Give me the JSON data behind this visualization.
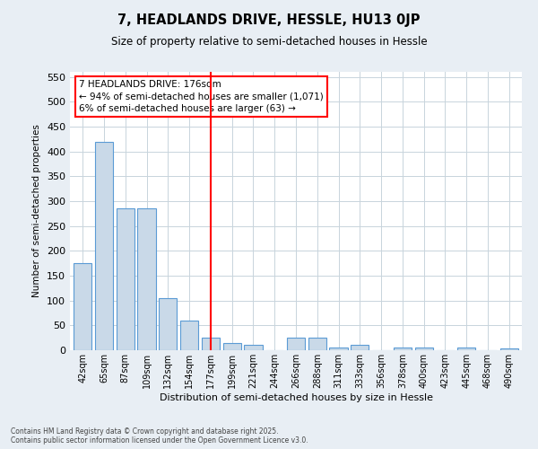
{
  "title": "7, HEADLANDS DRIVE, HESSLE, HU13 0JP",
  "subtitle": "Size of property relative to semi-detached houses in Hessle",
  "xlabel": "Distribution of semi-detached houses by size in Hessle",
  "ylabel": "Number of semi-detached properties",
  "categories": [
    "42sqm",
    "65sqm",
    "87sqm",
    "109sqm",
    "132sqm",
    "154sqm",
    "177sqm",
    "199sqm",
    "221sqm",
    "244sqm",
    "266sqm",
    "288sqm",
    "311sqm",
    "333sqm",
    "356sqm",
    "378sqm",
    "400sqm",
    "423sqm",
    "445sqm",
    "468sqm",
    "490sqm"
  ],
  "values": [
    175,
    420,
    285,
    285,
    105,
    60,
    25,
    15,
    10,
    0,
    25,
    25,
    5,
    10,
    0,
    5,
    5,
    0,
    5,
    0,
    3
  ],
  "bar_color": "#c9d9e8",
  "bar_edge_color": "#5b9bd5",
  "red_line_index": 6,
  "annotation_title": "7 HEADLANDS DRIVE: 176sqm",
  "annotation_line1": "← 94% of semi-detached houses are smaller (1,071)",
  "annotation_line2": "6% of semi-detached houses are larger (63) →",
  "ylim": [
    0,
    560
  ],
  "yticks": [
    0,
    50,
    100,
    150,
    200,
    250,
    300,
    350,
    400,
    450,
    500,
    550
  ],
  "footer_line1": "Contains HM Land Registry data © Crown copyright and database right 2025.",
  "footer_line2": "Contains public sector information licensed under the Open Government Licence v3.0.",
  "bg_color": "#e8eef4",
  "plot_bg_color": "#ffffff",
  "grid_color": "#c8d4dc"
}
